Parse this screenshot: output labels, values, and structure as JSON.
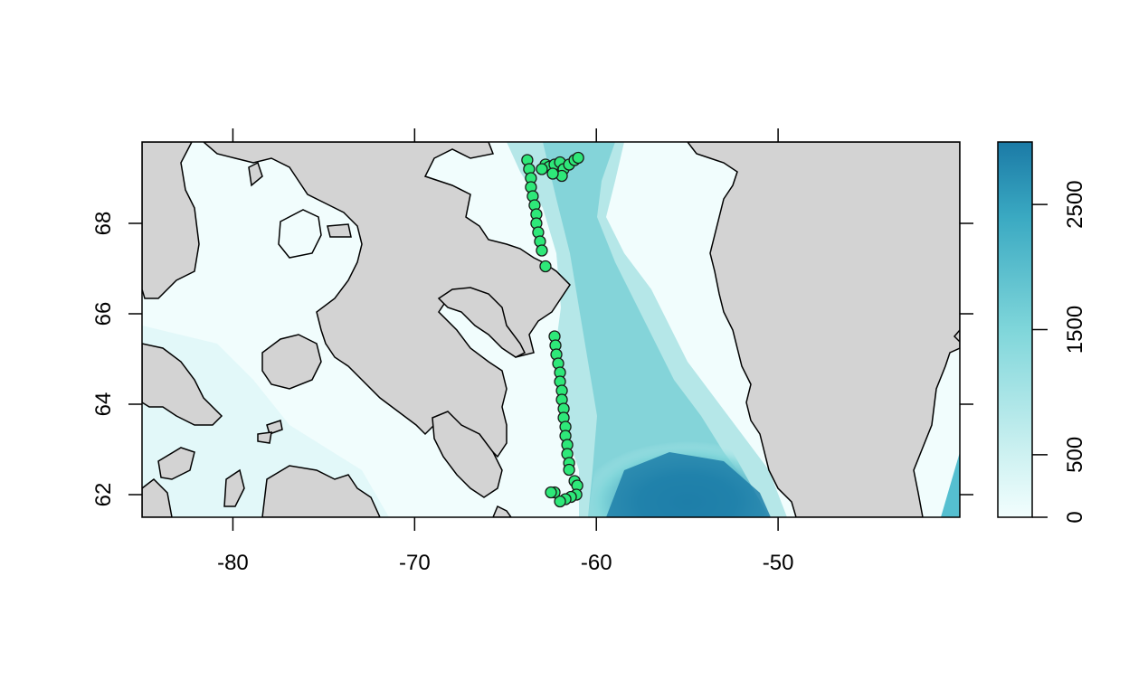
{
  "map": {
    "x_axis": {
      "range": [
        -85,
        -40
      ],
      "ticks": [
        -80,
        -70,
        -60,
        -50
      ],
      "labels": [
        "-80",
        "-70",
        "-60",
        "-50"
      ]
    },
    "y_axis": {
      "range": [
        61.5,
        69.8
      ],
      "ticks": [
        62,
        64,
        66,
        68
      ],
      "labels": [
        "62",
        "64",
        "66",
        "68"
      ]
    },
    "colors": {
      "land": "#d3d3d3",
      "shallow": "#f0fefe",
      "mid": "#7fd6da",
      "deep": "#1b7aa6",
      "point_fill": "#2ee879",
      "point_stroke": "#1a1a1a"
    },
    "legend": {
      "ticks": [
        0,
        500,
        1500,
        2500
      ],
      "labels": [
        "0",
        "500",
        "1500",
        "2500"
      ],
      "range": [
        0,
        3000
      ]
    }
  },
  "chart_data": {
    "type": "scatter",
    "x_label": "",
    "y_label": "",
    "xlim": [
      -85,
      -40
    ],
    "ylim": [
      61.5,
      69.8
    ],
    "track_points": [
      {
        "x": -63.8,
        "y": 69.4
      },
      {
        "x": -63.7,
        "y": 69.2
      },
      {
        "x": -63.6,
        "y": 69.0
      },
      {
        "x": -63.6,
        "y": 68.8
      },
      {
        "x": -63.5,
        "y": 68.6
      },
      {
        "x": -63.4,
        "y": 68.4
      },
      {
        "x": -63.3,
        "y": 68.2
      },
      {
        "x": -63.3,
        "y": 68.0
      },
      {
        "x": -63.2,
        "y": 67.8
      },
      {
        "x": -63.1,
        "y": 67.6
      },
      {
        "x": -63.0,
        "y": 67.4
      },
      {
        "x": -62.8,
        "y": 67.05
      },
      {
        "x": -62.3,
        "y": 65.5
      },
      {
        "x": -62.25,
        "y": 65.3
      },
      {
        "x": -62.2,
        "y": 65.1
      },
      {
        "x": -62.1,
        "y": 64.9
      },
      {
        "x": -62.0,
        "y": 64.7
      },
      {
        "x": -62.0,
        "y": 64.5
      },
      {
        "x": -61.9,
        "y": 64.3
      },
      {
        "x": -61.9,
        "y": 64.1
      },
      {
        "x": -61.8,
        "y": 63.9
      },
      {
        "x": -61.8,
        "y": 63.7
      },
      {
        "x": -61.7,
        "y": 63.5
      },
      {
        "x": -61.7,
        "y": 63.3
      },
      {
        "x": -61.6,
        "y": 63.1
      },
      {
        "x": -61.6,
        "y": 62.9
      },
      {
        "x": -61.5,
        "y": 62.7
      },
      {
        "x": -61.5,
        "y": 62.55
      },
      {
        "x": -61.2,
        "y": 62.3
      },
      {
        "x": -61.05,
        "y": 62.2
      },
      {
        "x": -61.1,
        "y": 62.0
      },
      {
        "x": -61.4,
        "y": 61.95
      },
      {
        "x": -61.7,
        "y": 61.9
      },
      {
        "x": -62.0,
        "y": 61.85
      },
      {
        "x": -62.3,
        "y": 62.05
      },
      {
        "x": -62.5,
        "y": 62.05
      },
      {
        "x": -62.8,
        "y": 69.3
      },
      {
        "x": -62.6,
        "y": 69.25
      },
      {
        "x": -62.3,
        "y": 69.3
      },
      {
        "x": -62.0,
        "y": 69.35
      },
      {
        "x": -61.8,
        "y": 69.2
      },
      {
        "x": -61.5,
        "y": 69.3
      },
      {
        "x": -61.2,
        "y": 69.4
      },
      {
        "x": -61.0,
        "y": 69.45
      },
      {
        "x": -61.9,
        "y": 69.05
      },
      {
        "x": -62.4,
        "y": 69.1
      },
      {
        "x": -63.0,
        "y": 69.2
      }
    ]
  }
}
